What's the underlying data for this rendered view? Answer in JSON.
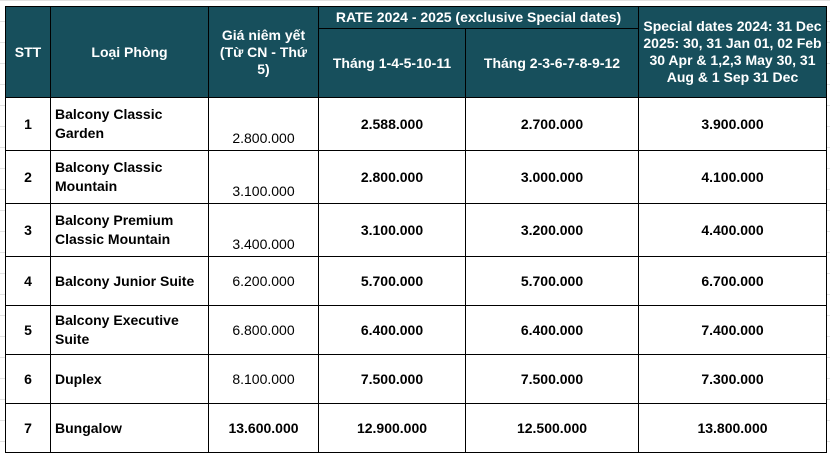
{
  "headers": {
    "stt": "STT",
    "room_type": "Loại Phòng",
    "list_price": "Giá niêm yết (Từ CN - Thứ 5)",
    "rate_group": "RATE 2024 - 2025 (exclusive Special dates)",
    "rate_a": "Tháng 1-4-5-10-11",
    "rate_b": "Tháng 2-3-6-7-8-9-12",
    "special": "Special dates 2024: 31 Dec 2025: 30, 31 Jan 01, 02 Feb 30 Apr & 1,2,3 May 30, 31 Aug & 1 Sep 31 Dec"
  },
  "rows": [
    {
      "stt": "1",
      "name": "Balcony Classic Garden",
      "list": "2.800.000",
      "rate_a": "2.588.000",
      "rate_b": "2.700.000",
      "special": "3.900.000"
    },
    {
      "stt": "2",
      "name": "Balcony Classic Mountain",
      "list": "3.100.000",
      "rate_a": "2.800.000",
      "rate_b": "3.000.000",
      "special": "4.100.000"
    },
    {
      "stt": "3",
      "name": "Balcony Premium Classic Mountain",
      "list": "3.400.000",
      "rate_a": "3.100.000",
      "rate_b": "3.200.000",
      "special": "4.400.000"
    },
    {
      "stt": "4",
      "name": "Balcony Junior Suite",
      "list": "6.200.000",
      "rate_a": "5.700.000",
      "rate_b": "5.700.000",
      "special": "6.700.000"
    },
    {
      "stt": "5",
      "name": "Balcony Executive Suite",
      "list": "6.800.000",
      "rate_a": "6.400.000",
      "rate_b": "6.400.000",
      "special": "7.400.000"
    },
    {
      "stt": "6",
      "name": "Duplex",
      "list": "8.100.000",
      "rate_a": "7.500.000",
      "rate_b": "7.500.000",
      "special": "7.300.000"
    },
    {
      "stt": "7",
      "name": "Bungalow",
      "list": "13.600.000",
      "rate_a": "12.900.000",
      "rate_b": "12.500.000",
      "special": "13.800.000"
    }
  ]
}
